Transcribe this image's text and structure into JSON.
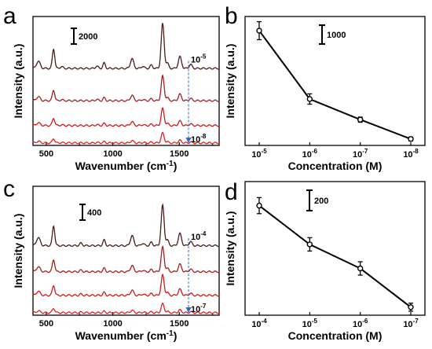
{
  "colors": {
    "axis": "#000000",
    "arrow": "#2f63d6",
    "spectra": [
      "#4a1c16",
      "#a51f1f",
      "#d01a1a",
      "#e12020"
    ]
  },
  "chart_data": [
    {
      "panel": "a",
      "type": "line",
      "xlabel": "Wavenumber (cm-1)",
      "xlabel_main": "Wavenumber (cm",
      "xlabel_sup": "-1",
      "xlabel_tail": ")",
      "ylabel": "Intensity (a.u.)",
      "xlim": [
        400,
        1800
      ],
      "xticks": [
        "500",
        "1000",
        "1500"
      ],
      "xtick_values": [
        500,
        1000,
        1500
      ],
      "scale_bar": "2000",
      "top_tag": {
        "base": "10",
        "exp": "-5"
      },
      "bottom_tag": {
        "base": "10",
        "exp": "-8"
      },
      "series": [
        {
          "offset": 0.62,
          "scale": 1.0
        },
        {
          "offset": 0.36,
          "scale": 0.55
        },
        {
          "offset": 0.16,
          "scale": 0.38
        },
        {
          "offset": 0.02,
          "scale": 0.22
        }
      ],
      "peaks": [
        {
          "x": 440,
          "h": 0.16,
          "w": 14
        },
        {
          "x": 555,
          "h": 0.44,
          "w": 9
        },
        {
          "x": 615,
          "h": 0.04,
          "w": 10
        },
        {
          "x": 880,
          "h": 0.05,
          "w": 10
        },
        {
          "x": 935,
          "h": 0.12,
          "w": 9
        },
        {
          "x": 1145,
          "h": 0.22,
          "w": 12
        },
        {
          "x": 1225,
          "h": 0.05,
          "w": 10
        },
        {
          "x": 1290,
          "h": 0.07,
          "w": 10
        },
        {
          "x": 1375,
          "h": 1.0,
          "w": 11
        },
        {
          "x": 1410,
          "h": 0.12,
          "w": 10
        },
        {
          "x": 1505,
          "h": 0.26,
          "w": 12
        },
        {
          "x": 1585,
          "h": 0.09,
          "w": 11
        }
      ]
    },
    {
      "panel": "b",
      "type": "line",
      "xlabel": "Concentration (M)",
      "ylabel": "Intensity (a.u.)",
      "scale_bar": "1000",
      "categories": [
        {
          "base": "10",
          "exp": "-5"
        },
        {
          "base": "10",
          "exp": "-6"
        },
        {
          "base": "10",
          "exp": "-7"
        },
        {
          "base": "10",
          "exp": "-8"
        }
      ],
      "values": [
        0.89,
        0.36,
        0.2,
        0.05
      ],
      "errors": [
        0.07,
        0.04,
        0.02,
        0.015
      ],
      "ylim": [
        0,
        1
      ]
    },
    {
      "panel": "c",
      "type": "line",
      "xlabel": "Wavenumber (cm-1)",
      "xlabel_main": "Wavenumber (cm",
      "xlabel_sup": "-1",
      "xlabel_tail": ")",
      "ylabel": "Intensity (a.u.)",
      "xlim": [
        400,
        1800
      ],
      "xticks": [
        "500",
        "1000",
        "1500"
      ],
      "xtick_values": [
        500,
        1000,
        1500
      ],
      "scale_bar": "400",
      "top_tag": {
        "base": "10",
        "exp": "-4"
      },
      "bottom_tag": {
        "base": "10",
        "exp": "-7"
      },
      "series": [
        {
          "offset": 0.56,
          "scale": 0.9
        },
        {
          "offset": 0.35,
          "scale": 0.55
        },
        {
          "offset": 0.16,
          "scale": 0.45
        },
        {
          "offset": 0.02,
          "scale": 0.2
        }
      ],
      "peaks": [
        {
          "x": 440,
          "h": 0.2,
          "w": 14
        },
        {
          "x": 555,
          "h": 0.5,
          "w": 9
        },
        {
          "x": 760,
          "h": 0.06,
          "w": 10
        },
        {
          "x": 935,
          "h": 0.14,
          "w": 9
        },
        {
          "x": 1145,
          "h": 0.25,
          "w": 12
        },
        {
          "x": 1225,
          "h": 0.06,
          "w": 10
        },
        {
          "x": 1290,
          "h": 0.08,
          "w": 10
        },
        {
          "x": 1375,
          "h": 1.0,
          "w": 11
        },
        {
          "x": 1410,
          "h": 0.14,
          "w": 10
        },
        {
          "x": 1505,
          "h": 0.3,
          "w": 12
        },
        {
          "x": 1585,
          "h": 0.1,
          "w": 11
        }
      ]
    },
    {
      "panel": "d",
      "type": "line",
      "xlabel": "Concentration (M)",
      "ylabel": "Intensity (a.u.)",
      "scale_bar": "200",
      "categories": [
        {
          "base": "10",
          "exp": "-4"
        },
        {
          "base": "10",
          "exp": "-5"
        },
        {
          "base": "10",
          "exp": "-6"
        },
        {
          "base": "10",
          "exp": "-7"
        }
      ],
      "values": [
        0.82,
        0.53,
        0.35,
        0.06
      ],
      "errors": [
        0.06,
        0.05,
        0.05,
        0.03
      ],
      "ylim": [
        0,
        1
      ]
    }
  ]
}
